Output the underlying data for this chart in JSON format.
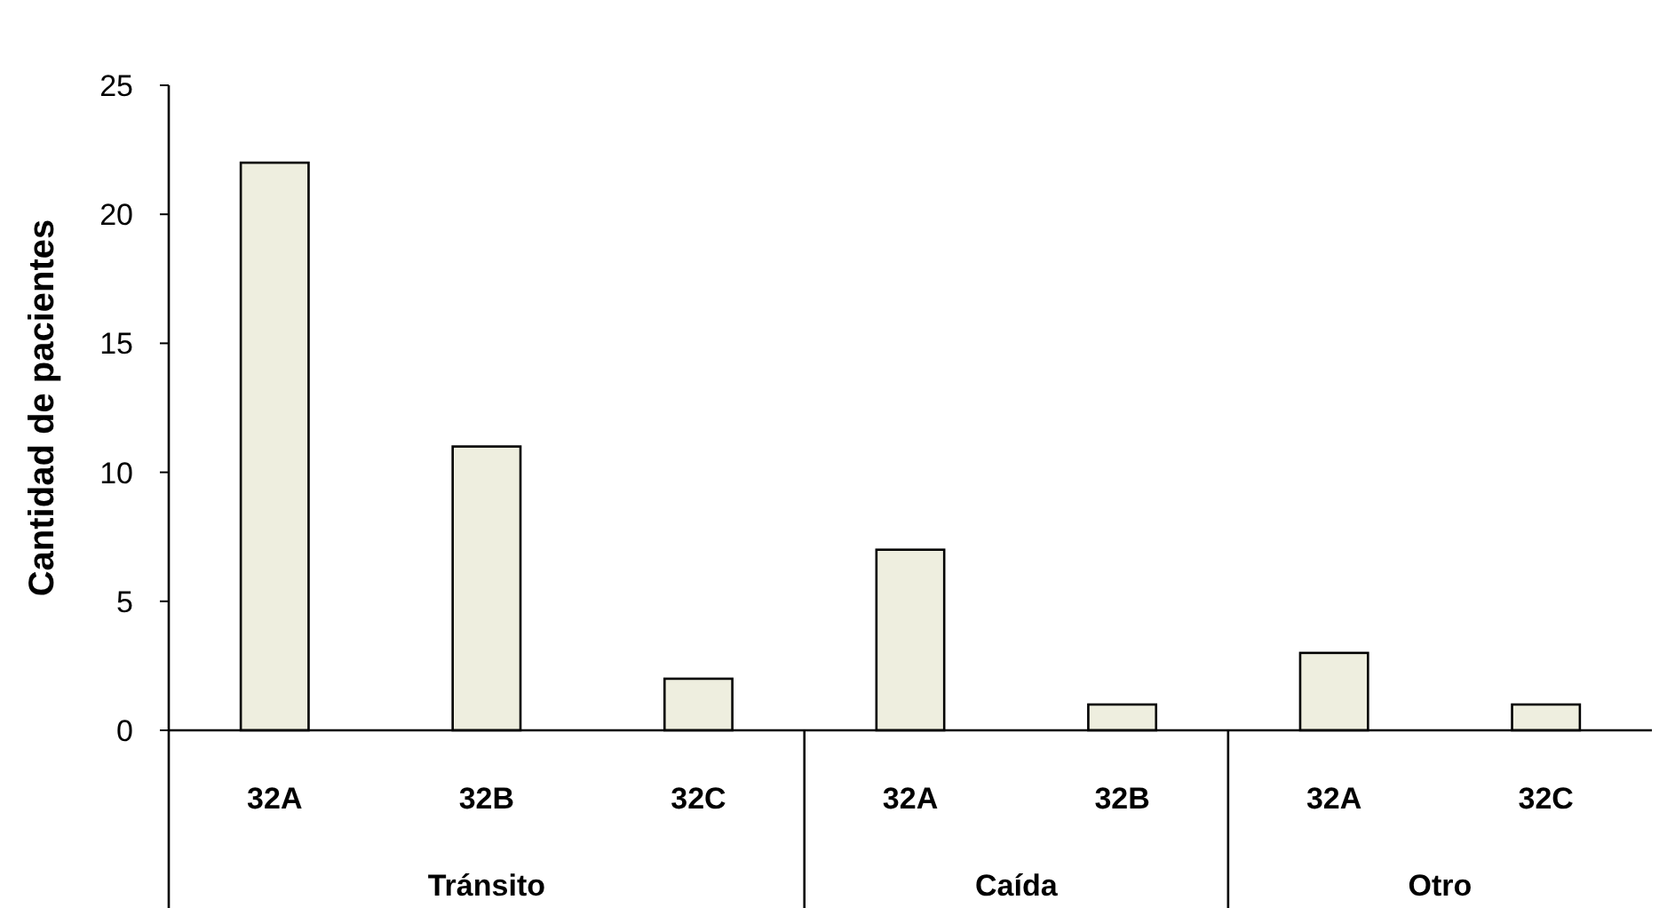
{
  "chart_data": {
    "type": "bar",
    "ylabel": "Cantidad de pacientes",
    "categories": [
      "32A",
      "32B",
      "32C",
      "32A",
      "32B",
      "32A",
      "32C"
    ],
    "values": [
      22,
      11,
      2,
      7,
      1,
      3,
      1
    ],
    "color": "#eeeedf",
    "ylim": [
      0,
      25
    ],
    "yticks": [
      0,
      5,
      10,
      15,
      20,
      25
    ],
    "grid": false,
    "annotations": [
      "Tránsito",
      "Caída",
      "Otro"
    ]
  }
}
